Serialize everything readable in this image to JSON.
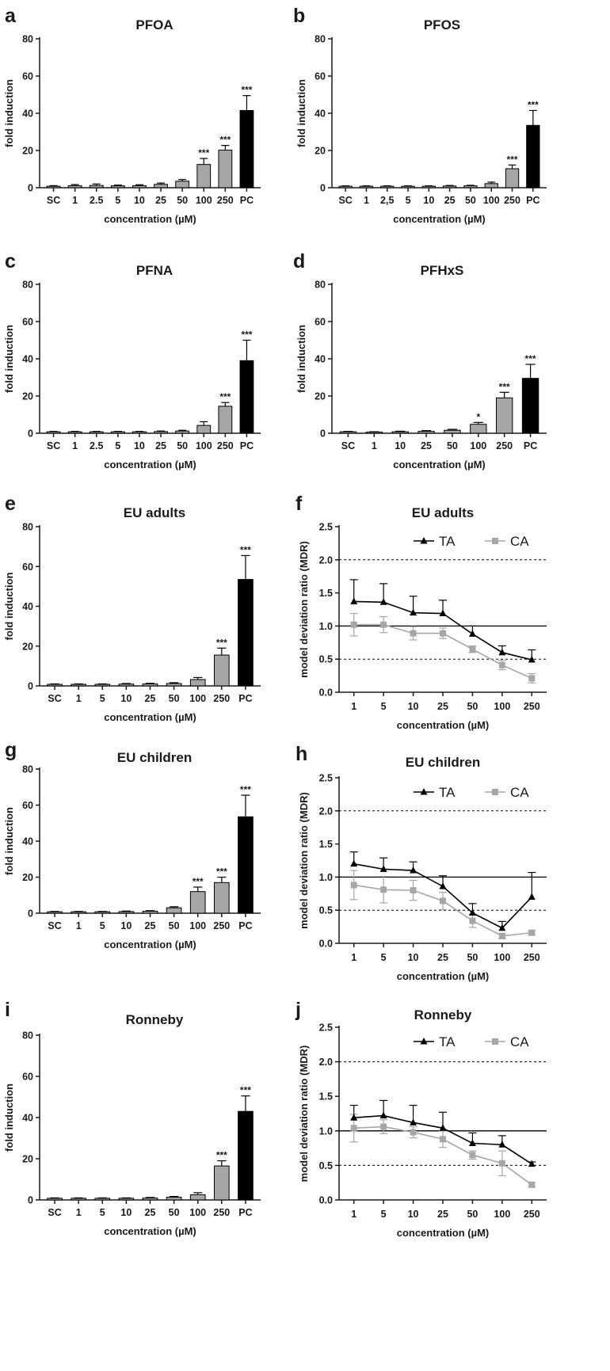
{
  "figure": {
    "colors": {
      "bar_gray": "#a6a6a6",
      "bar_black": "#000000",
      "axis": "#1a1a1a",
      "line_TA": "#000000",
      "line_CA": "#a6a6a6"
    }
  },
  "chart_data": [
    {
      "id": "a",
      "letter": "a",
      "type": "bar",
      "title": "PFOA",
      "xlabel": "concentration (µM)",
      "ylabel": "fold induction",
      "ylim": [
        0,
        80
      ],
      "yticks": [
        0,
        20,
        40,
        60,
        80
      ],
      "categories": [
        "SC",
        "1",
        "2.5",
        "5",
        "10",
        "25",
        "50",
        "100",
        "250",
        "PC"
      ],
      "values": [
        0.8,
        1.1,
        1.2,
        1.0,
        1.1,
        1.8,
        3.5,
        12.5,
        20.2,
        41.5
      ],
      "errors": [
        0.3,
        0.6,
        0.8,
        0.4,
        0.5,
        0.7,
        0.9,
        3.2,
        2.5,
        8.0
      ],
      "significance": [
        "",
        "",
        "",
        "",
        "",
        "",
        "",
        "***",
        "***",
        "***"
      ],
      "bar_colors": [
        "gray",
        "gray",
        "gray",
        "gray",
        "gray",
        "gray",
        "gray",
        "gray",
        "gray",
        "black"
      ]
    },
    {
      "id": "b",
      "letter": "b",
      "type": "bar",
      "title": "PFOS",
      "xlabel": "concentration (µM)",
      "ylabel": "fold induction",
      "ylim": [
        0,
        80
      ],
      "yticks": [
        0,
        20,
        40,
        60,
        80
      ],
      "categories": [
        "SC",
        "1",
        "2,5",
        "5",
        "10",
        "25",
        "50",
        "100",
        "250",
        "PC"
      ],
      "values": [
        0.8,
        0.8,
        0.8,
        0.8,
        0.8,
        0.9,
        1.0,
        2.2,
        10.2,
        33.5
      ],
      "errors": [
        0.2,
        0.2,
        0.2,
        0.2,
        0.2,
        0.3,
        0.3,
        0.8,
        2.0,
        8.0
      ],
      "significance": [
        "",
        "",
        "",
        "",
        "",
        "",
        "",
        "",
        "***",
        "***"
      ],
      "bar_colors": [
        "gray",
        "gray",
        "gray",
        "gray",
        "gray",
        "gray",
        "gray",
        "gray",
        "gray",
        "black"
      ]
    },
    {
      "id": "c",
      "letter": "c",
      "type": "bar",
      "title": "PFNA",
      "xlabel": "concentration (µM)",
      "ylabel": "fold induction",
      "ylim": [
        0,
        80
      ],
      "yticks": [
        0,
        20,
        40,
        60,
        80
      ],
      "categories": [
        "SC",
        "1",
        "2.5",
        "5",
        "10",
        "25",
        "50",
        "100",
        "250",
        "PC"
      ],
      "values": [
        0.8,
        0.8,
        0.8,
        0.8,
        0.8,
        0.9,
        1.2,
        4.2,
        14.5,
        39.0
      ],
      "errors": [
        0.2,
        0.2,
        0.2,
        0.2,
        0.2,
        0.3,
        0.4,
        2.0,
        2.0,
        11.0
      ],
      "significance": [
        "",
        "",
        "",
        "",
        "",
        "",
        "",
        "",
        "***",
        "***"
      ],
      "bar_colors": [
        "gray",
        "gray",
        "gray",
        "gray",
        "gray",
        "gray",
        "gray",
        "gray",
        "gray",
        "black"
      ]
    },
    {
      "id": "d",
      "letter": "d",
      "type": "bar",
      "title": "PFHxS",
      "xlabel": "concentration (µM)",
      "ylabel": "fold induction",
      "ylim": [
        0,
        80
      ],
      "yticks": [
        0,
        20,
        40,
        60,
        80
      ],
      "categories": [
        "SC",
        "1",
        "10",
        "25",
        "50",
        "100",
        "250",
        "PC"
      ],
      "values": [
        0.8,
        0.6,
        0.8,
        1.0,
        1.6,
        4.8,
        19.0,
        29.5
      ],
      "errors": [
        0.2,
        0.2,
        0.3,
        0.4,
        0.5,
        1.0,
        3.0,
        7.5
      ],
      "significance": [
        "",
        "",
        "",
        "",
        "",
        "*",
        "***",
        "***"
      ],
      "bar_colors": [
        "gray",
        "gray",
        "gray",
        "gray",
        "gray",
        "gray",
        "gray",
        "black"
      ]
    },
    {
      "id": "e",
      "letter": "e",
      "type": "bar",
      "title": "EU adults",
      "xlabel": "concentration (µM)",
      "ylabel": "fold induction",
      "ylim": [
        0,
        80
      ],
      "yticks": [
        0,
        20,
        40,
        60,
        80
      ],
      "categories": [
        "SC",
        "1",
        "5",
        "10",
        "25",
        "50",
        "100",
        "250",
        "PC"
      ],
      "values": [
        0.8,
        0.8,
        0.8,
        0.9,
        1.0,
        1.2,
        3.2,
        15.5,
        53.5
      ],
      "errors": [
        0.2,
        0.2,
        0.2,
        0.3,
        0.3,
        0.4,
        1.0,
        3.5,
        12.0
      ],
      "significance": [
        "",
        "",
        "",
        "",
        "",
        "",
        "",
        "***",
        "***"
      ],
      "bar_colors": [
        "gray",
        "gray",
        "gray",
        "gray",
        "gray",
        "gray",
        "gray",
        "gray",
        "black"
      ]
    },
    {
      "id": "f",
      "letter": "f",
      "type": "line",
      "title": "EU adults",
      "xlabel": "concentration (µM)",
      "ylabel": "model deviation ratio (MDR)",
      "ylim": [
        0,
        2.5
      ],
      "yticks": [
        "0.0",
        "0.5",
        "1.0",
        "1.5",
        "2.0",
        "2.5"
      ],
      "solid_lines": [
        1.0
      ],
      "dashed_lines": [
        0.5,
        2.0
      ],
      "legend_position": "top-right",
      "categories": [
        "1",
        "5",
        "10",
        "25",
        "50",
        "100",
        "250"
      ],
      "series": [
        {
          "name": "TA",
          "color": "#000000",
          "marker": "triangle",
          "values": [
            1.37,
            1.36,
            1.2,
            1.19,
            0.88,
            0.6,
            0.49
          ],
          "errors": [
            0.33,
            0.28,
            0.25,
            0.2,
            0.12,
            0.1,
            0.15
          ]
        },
        {
          "name": "CA",
          "color": "#a6a6a6",
          "marker": "square",
          "values": [
            1.02,
            1.02,
            0.89,
            0.89,
            0.65,
            0.41,
            0.21
          ],
          "errors": [
            0.17,
            0.12,
            0.1,
            0.08,
            0.05,
            0.07,
            0.07
          ]
        }
      ]
    },
    {
      "id": "g",
      "letter": "g",
      "type": "bar",
      "title": "EU children",
      "xlabel": "concentration (µM)",
      "ylabel": "fold induction",
      "ylim": [
        0,
        80
      ],
      "yticks": [
        0,
        20,
        40,
        60,
        80
      ],
      "categories": [
        "SC",
        "1",
        "5",
        "10",
        "25",
        "50",
        "100",
        "250",
        "PC"
      ],
      "values": [
        0.8,
        0.8,
        0.8,
        0.9,
        1.1,
        3.0,
        12.0,
        17.0,
        53.5
      ],
      "errors": [
        0.2,
        0.2,
        0.2,
        0.3,
        0.3,
        0.6,
        2.5,
        3.0,
        12.0
      ],
      "significance": [
        "",
        "",
        "",
        "",
        "",
        "",
        "***",
        "***",
        "***"
      ],
      "bar_colors": [
        "gray",
        "gray",
        "gray",
        "gray",
        "gray",
        "gray",
        "gray",
        "gray",
        "black"
      ]
    },
    {
      "id": "h",
      "letter": "h",
      "type": "line",
      "title": "EU children",
      "xlabel": "concentration (µM)",
      "ylabel": "model deviation ratio (MDR)",
      "ylim": [
        0,
        2.5
      ],
      "yticks": [
        "0.0",
        "0.5",
        "1.0",
        "1.5",
        "2.0",
        "2.5"
      ],
      "solid_lines": [
        1.0
      ],
      "dashed_lines": [
        0.5,
        2.0
      ],
      "legend_position": "top-right",
      "categories": [
        "1",
        "5",
        "10",
        "25",
        "50",
        "100",
        "250"
      ],
      "series": [
        {
          "name": "TA",
          "color": "#000000",
          "marker": "triangle",
          "values": [
            1.2,
            1.12,
            1.1,
            0.86,
            0.46,
            0.23,
            0.7
          ],
          "errors": [
            0.18,
            0.17,
            0.13,
            0.16,
            0.14,
            0.1,
            0.37
          ]
        },
        {
          "name": "CA",
          "color": "#a6a6a6",
          "marker": "square",
          "values": [
            0.88,
            0.81,
            0.8,
            0.64,
            0.34,
            0.11,
            0.16
          ],
          "errors": [
            0.22,
            0.2,
            0.15,
            0.13,
            0.1,
            0.04,
            0.03
          ]
        }
      ]
    },
    {
      "id": "i",
      "letter": "i",
      "type": "bar",
      "title": "Ronneby",
      "xlabel": "concentration (µM)",
      "ylabel": "fold induction",
      "ylim": [
        0,
        80
      ],
      "yticks": [
        0,
        20,
        40,
        60,
        80
      ],
      "categories": [
        "SC",
        "1",
        "5",
        "10",
        "25",
        "50",
        "100",
        "250",
        "PC"
      ],
      "values": [
        0.8,
        0.8,
        0.8,
        0.8,
        0.9,
        1.3,
        2.5,
        16.5,
        43.0
      ],
      "errors": [
        0.2,
        0.2,
        0.2,
        0.2,
        0.3,
        0.4,
        1.0,
        2.5,
        7.5
      ],
      "significance": [
        "",
        "",
        "",
        "",
        "",
        "",
        "",
        "***",
        "***"
      ],
      "bar_colors": [
        "gray",
        "gray",
        "gray",
        "gray",
        "gray",
        "gray",
        "gray",
        "gray",
        "black"
      ]
    },
    {
      "id": "j",
      "letter": "j",
      "type": "line",
      "title": "Ronneby",
      "xlabel": "concentration (µM)",
      "ylabel": "model deviation ratio (MDR)",
      "ylim": [
        0,
        2.5
      ],
      "yticks": [
        "0.0",
        "0.5",
        "1.0",
        "1.5",
        "2.0",
        "2.5"
      ],
      "solid_lines": [
        1.0
      ],
      "dashed_lines": [
        0.5,
        2.0
      ],
      "legend_position": "top-right",
      "categories": [
        "1",
        "5",
        "10",
        "25",
        "50",
        "100",
        "250"
      ],
      "series": [
        {
          "name": "TA",
          "color": "#000000",
          "marker": "triangle",
          "values": [
            1.19,
            1.22,
            1.12,
            1.04,
            0.82,
            0.8,
            0.52
          ],
          "errors": [
            0.18,
            0.22,
            0.25,
            0.23,
            0.15,
            0.13,
            0.03
          ]
        },
        {
          "name": "CA",
          "color": "#a6a6a6",
          "marker": "square",
          "values": [
            1.04,
            1.06,
            0.98,
            0.88,
            0.65,
            0.53,
            0.22
          ],
          "errors": [
            0.2,
            0.1,
            0.08,
            0.12,
            0.06,
            0.18,
            0.03
          ]
        }
      ]
    }
  ]
}
